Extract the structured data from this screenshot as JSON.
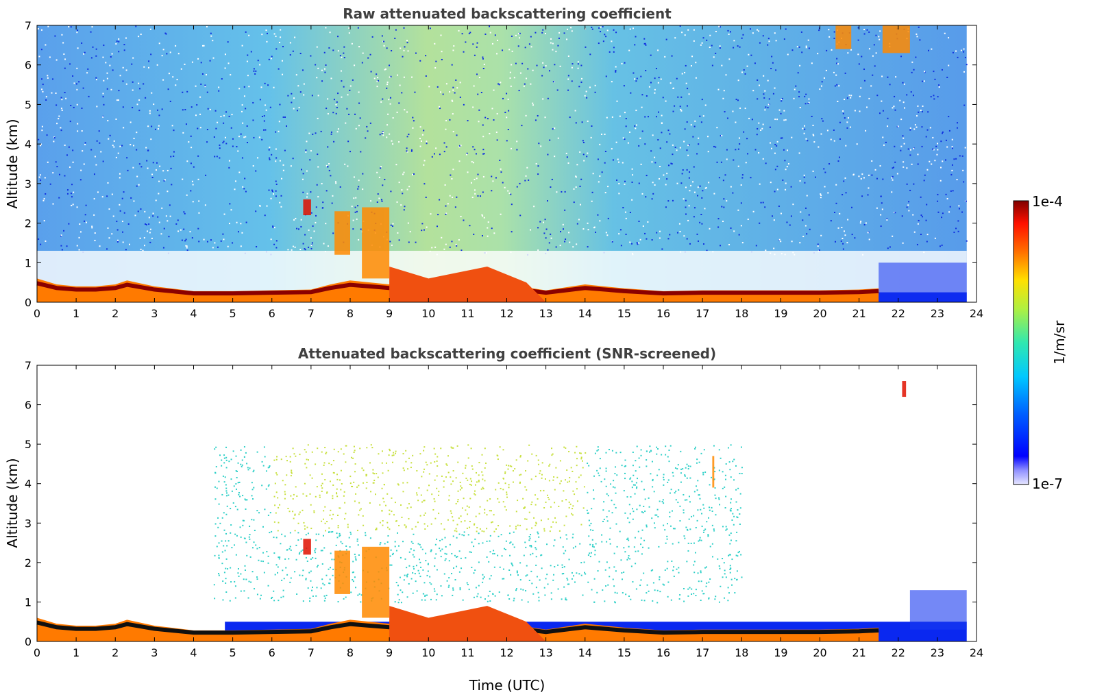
{
  "chart_data": [
    {
      "type": "heatmap",
      "title": "Raw attenuated backscattering coefficient",
      "xlabel": "",
      "ylabel": "Altitude (km)",
      "xlim": [
        0,
        24
      ],
      "ylim": [
        0,
        7
      ],
      "xticks": [
        "0",
        "1",
        "2",
        "3",
        "4",
        "5",
        "6",
        "7",
        "8",
        "9",
        "10",
        "11",
        "12",
        "13",
        "14",
        "15",
        "16",
        "17",
        "18",
        "19",
        "20",
        "21",
        "22",
        "23",
        "24"
      ],
      "yticks": [
        "0",
        "1",
        "2",
        "3",
        "4",
        "5",
        "6",
        "7"
      ],
      "data_end_time": 23.75,
      "layer_top_km": [
        [
          0,
          0.6
        ],
        [
          0.5,
          0.45
        ],
        [
          1,
          0.4
        ],
        [
          1.5,
          0.4
        ],
        [
          2,
          0.45
        ],
        [
          2.3,
          0.55
        ],
        [
          3,
          0.4
        ],
        [
          4,
          0.28
        ],
        [
          5,
          0.28
        ],
        [
          6,
          0.3
        ],
        [
          7,
          0.32
        ],
        [
          7.5,
          0.45
        ],
        [
          8,
          0.55
        ],
        [
          8.5,
          0.5
        ],
        [
          9,
          0.45
        ],
        [
          10,
          0.45
        ],
        [
          11,
          0.45
        ],
        [
          12,
          0.45
        ],
        [
          13,
          0.3
        ],
        [
          14,
          0.45
        ],
        [
          15,
          0.35
        ],
        [
          16,
          0.28
        ],
        [
          17,
          0.3
        ],
        [
          18,
          0.3
        ],
        [
          19,
          0.3
        ],
        [
          20,
          0.3
        ],
        [
          21,
          0.32
        ],
        [
          21.5,
          0.35
        ]
      ],
      "features": [
        {
          "t0": 7.6,
          "t1": 8.0,
          "z0": 1.2,
          "z1": 2.3,
          "level": "orange"
        },
        {
          "t0": 8.3,
          "t1": 9.0,
          "z0": 0.6,
          "z1": 2.4,
          "level": "orange"
        },
        {
          "t0": 6.8,
          "t1": 7.0,
          "z0": 2.2,
          "z1": 2.6,
          "level": "red"
        },
        {
          "t0": 20.4,
          "t1": 20.8,
          "z0": 6.4,
          "z1": 7.0,
          "level": "orange"
        },
        {
          "t0": 21.6,
          "t1": 22.3,
          "z0": 6.3,
          "z1": 7.0,
          "level": "orange"
        }
      ]
    },
    {
      "type": "heatmap",
      "title": "Attenuated backscattering coefficient (SNR-screened)",
      "xlabel": "Time (UTC)",
      "ylabel": "Altitude (km)",
      "xlim": [
        0,
        24
      ],
      "ylim": [
        0,
        7
      ],
      "xticks": [
        "0",
        "1",
        "2",
        "3",
        "4",
        "5",
        "6",
        "7",
        "8",
        "9",
        "10",
        "11",
        "12",
        "13",
        "14",
        "15",
        "16",
        "17",
        "18",
        "19",
        "20",
        "21",
        "22",
        "23",
        "24"
      ],
      "yticks": [
        "0",
        "1",
        "2",
        "3",
        "4",
        "5",
        "6",
        "7"
      ],
      "data_end_time": 23.75,
      "features": [
        {
          "t0": 7.6,
          "t1": 8.0,
          "z0": 1.2,
          "z1": 2.3,
          "level": "orange"
        },
        {
          "t0": 8.3,
          "t1": 9.0,
          "z0": 0.6,
          "z1": 2.4,
          "level": "orange"
        },
        {
          "t0": 6.8,
          "t1": 7.0,
          "z0": 2.2,
          "z1": 2.6,
          "level": "red"
        },
        {
          "t0": 17.25,
          "t1": 17.3,
          "z0": 3.9,
          "z1": 4.7,
          "level": "orange"
        },
        {
          "t0": 22.1,
          "t1": 22.2,
          "z0": 6.2,
          "z1": 6.6,
          "level": "red"
        }
      ]
    }
  ],
  "colorbar": {
    "label": "1/m/sr",
    "max_label": "1e-4",
    "min_label": "1e-7",
    "scale": "log",
    "colormap": "jet"
  },
  "colors": {
    "low": "#0010ff",
    "mid": "#20e0c0",
    "high": "#ffd000",
    "max": "#800000",
    "title": "#404040"
  }
}
